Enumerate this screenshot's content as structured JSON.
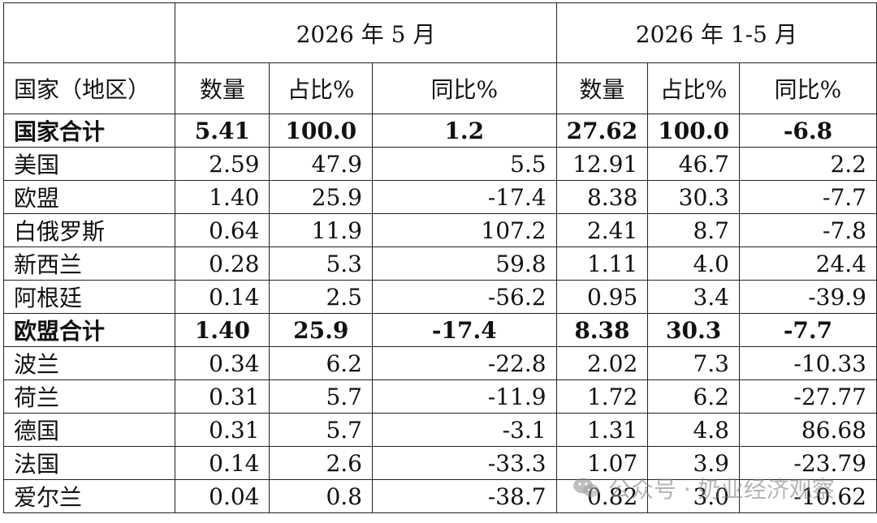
{
  "header": {
    "group_may": "2026 年 5 月",
    "group_ytd": "2026 年 1-5 月",
    "region_col": "国家（地区）",
    "qty": "数量",
    "share": "占比%",
    "yoy": "同比%"
  },
  "rows": [
    {
      "name": "国家合计",
      "q1": "5.41",
      "s1": "100.0",
      "y1": "1.2",
      "q2": "27.62",
      "s2": "100.0",
      "y2": "-6.8"
    },
    {
      "name": "美国",
      "q1": "2.59",
      "s1": "47.9",
      "y1": "5.5",
      "q2": "12.91",
      "s2": "46.7",
      "y2": "2.2"
    },
    {
      "name": "欧盟",
      "q1": "1.40",
      "s1": "25.9",
      "y1": "-17.4",
      "q2": "8.38",
      "s2": "30.3",
      "y2": "-7.7"
    },
    {
      "name": "白俄罗斯",
      "q1": "0.64",
      "s1": "11.9",
      "y1": "107.2",
      "q2": "2.41",
      "s2": "8.7",
      "y2": "-7.8"
    },
    {
      "name": "新西兰",
      "q1": "0.28",
      "s1": "5.3",
      "y1": "59.8",
      "q2": "1.11",
      "s2": "4.0",
      "y2": "24.4"
    },
    {
      "name": "阿根廷",
      "q1": "0.14",
      "s1": "2.5",
      "y1": "-56.2",
      "q2": "0.95",
      "s2": "3.4",
      "y2": "-39.9"
    },
    {
      "name": "欧盟合计",
      "q1": "1.40",
      "s1": "25.9",
      "y1": "-17.4",
      "q2": "8.38",
      "s2": "30.3",
      "y2": "-7.7"
    },
    {
      "name": "波兰",
      "q1": "0.34",
      "s1": "6.2",
      "y1": "-22.8",
      "q2": "2.02",
      "s2": "7.3",
      "y2": "-10.33"
    },
    {
      "name": "荷兰",
      "q1": "0.31",
      "s1": "5.7",
      "y1": "-11.9",
      "q2": "1.72",
      "s2": "6.2",
      "y2": "-27.77"
    },
    {
      "name": "德国",
      "q1": "0.31",
      "s1": "5.7",
      "y1": "-3.1",
      "q2": "1.31",
      "s2": "4.8",
      "y2": "86.68"
    },
    {
      "name": "法国",
      "q1": "0.14",
      "s1": "2.6",
      "y1": "-33.3",
      "q2": "1.07",
      "s2": "3.9",
      "y2": "-23.79"
    },
    {
      "name": "爱尔兰",
      "q1": "0.04",
      "s1": "0.8",
      "y1": "-38.7",
      "q2": "0.82",
      "s2": "3.0",
      "y2": "-10.62"
    }
  ],
  "watermark": {
    "text": "公众号 · 奶业经济观察",
    "icon": "wechat-icon"
  }
}
